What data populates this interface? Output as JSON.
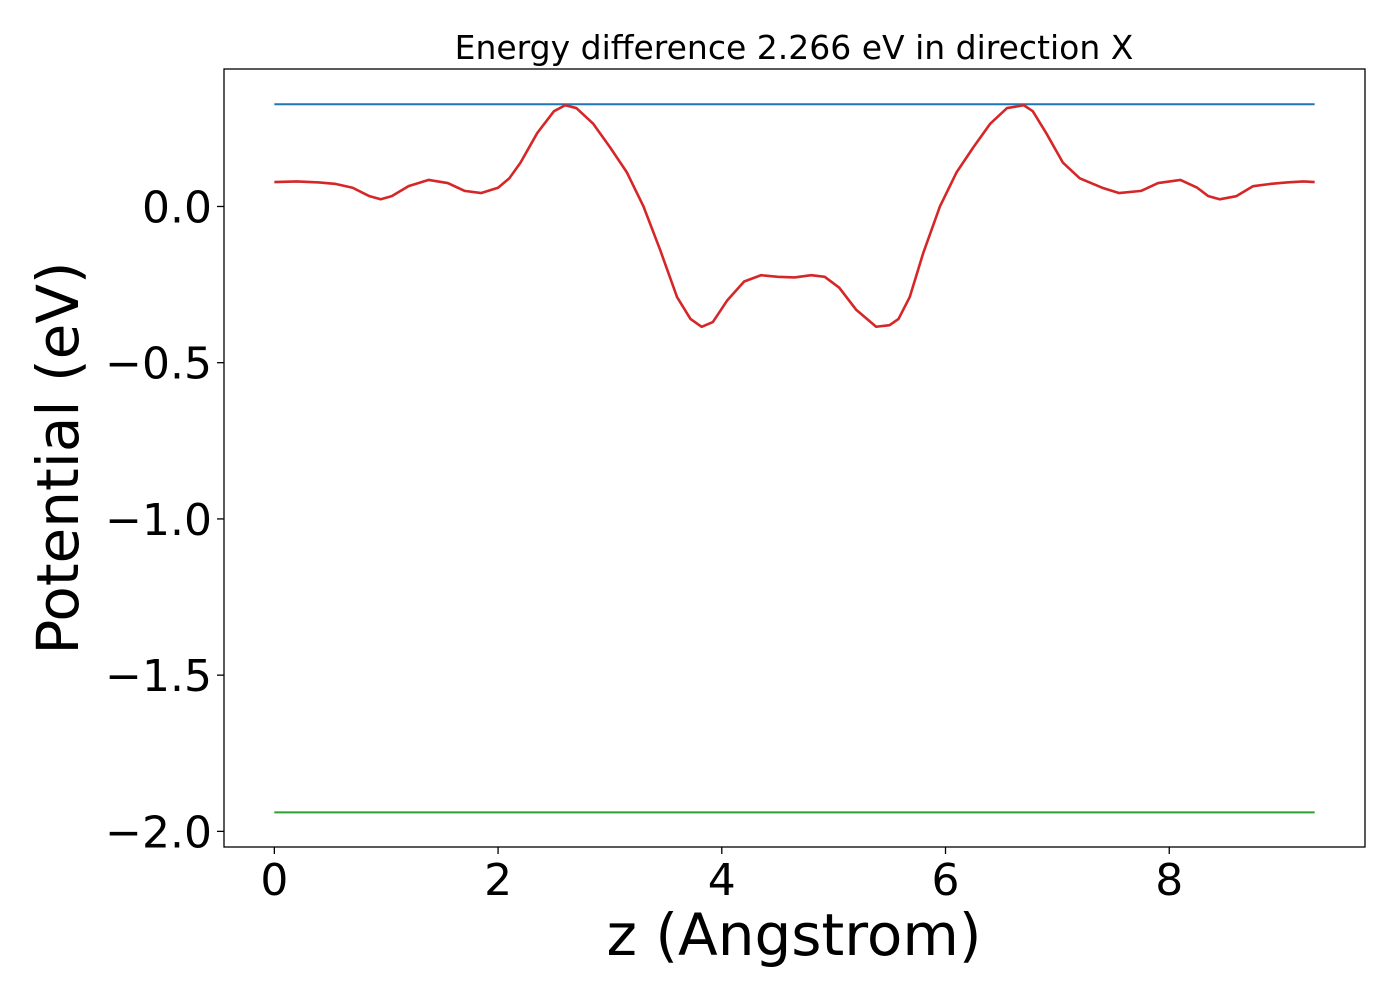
{
  "chart_data": {
    "type": "line",
    "title": "Energy difference 2.266 eV in direction X",
    "xlabel": "z (Angstrom)",
    "ylabel": "Potential (eV)",
    "xlim": [
      -0.45,
      9.75
    ],
    "ylim": [
      -2.05,
      0.44
    ],
    "xticks": [
      {
        "value": 0,
        "label": "0"
      },
      {
        "value": 2,
        "label": "2"
      },
      {
        "value": 4,
        "label": "4"
      },
      {
        "value": 6,
        "label": "6"
      },
      {
        "value": 8,
        "label": "8"
      }
    ],
    "yticks": [
      {
        "value": 0.0,
        "label": "0.0"
      },
      {
        "value": -0.5,
        "label": "−0.5"
      },
      {
        "value": -1.0,
        "label": "−1.0"
      },
      {
        "value": -1.5,
        "label": "−1.5"
      },
      {
        "value": -2.0,
        "label": "−2.0"
      }
    ],
    "grid": false,
    "series": [
      {
        "color": "#1f77b4",
        "x": [
          0,
          9.3
        ],
        "y": [
          0.327,
          0.327
        ]
      },
      {
        "color": "#d62728",
        "x": [
          0.0,
          0.2,
          0.4,
          0.55,
          0.7,
          0.85,
          0.95,
          1.05,
          1.2,
          1.38,
          1.55,
          1.7,
          1.85,
          2.0,
          2.1,
          2.2,
          2.35,
          2.5,
          2.6,
          2.7,
          2.85,
          3.0,
          3.15,
          3.3,
          3.45,
          3.6,
          3.72,
          3.82,
          3.92,
          4.05,
          4.2,
          4.35,
          4.5,
          4.65,
          4.8,
          4.92,
          5.05,
          5.2,
          5.38,
          5.5,
          5.58,
          5.68,
          5.8,
          5.95,
          6.1,
          6.25,
          6.4,
          6.55,
          6.7,
          6.78,
          6.9,
          7.05,
          7.2,
          7.4,
          7.55,
          7.75,
          7.9,
          8.1,
          8.25,
          8.35,
          8.45,
          8.6,
          8.75,
          8.9,
          9.05,
          9.2,
          9.3
        ],
        "y": [
          0.078,
          0.08,
          0.077,
          0.072,
          0.06,
          0.033,
          0.023,
          0.033,
          0.065,
          0.085,
          0.075,
          0.05,
          0.043,
          0.06,
          0.09,
          0.14,
          0.235,
          0.305,
          0.324,
          0.315,
          0.265,
          0.19,
          0.11,
          0.0,
          -0.14,
          -0.29,
          -0.36,
          -0.385,
          -0.37,
          -0.3,
          -0.24,
          -0.22,
          -0.225,
          -0.227,
          -0.22,
          -0.225,
          -0.26,
          -0.33,
          -0.385,
          -0.38,
          -0.36,
          -0.29,
          -0.15,
          0.0,
          0.11,
          0.19,
          0.265,
          0.315,
          0.324,
          0.305,
          0.235,
          0.14,
          0.09,
          0.06,
          0.043,
          0.05,
          0.075,
          0.085,
          0.06,
          0.033,
          0.023,
          0.033,
          0.065,
          0.072,
          0.077,
          0.08,
          0.078
        ]
      },
      {
        "color": "#2ca02c",
        "x": [
          0,
          9.3
        ],
        "y": [
          -1.939,
          -1.939
        ]
      }
    ]
  }
}
